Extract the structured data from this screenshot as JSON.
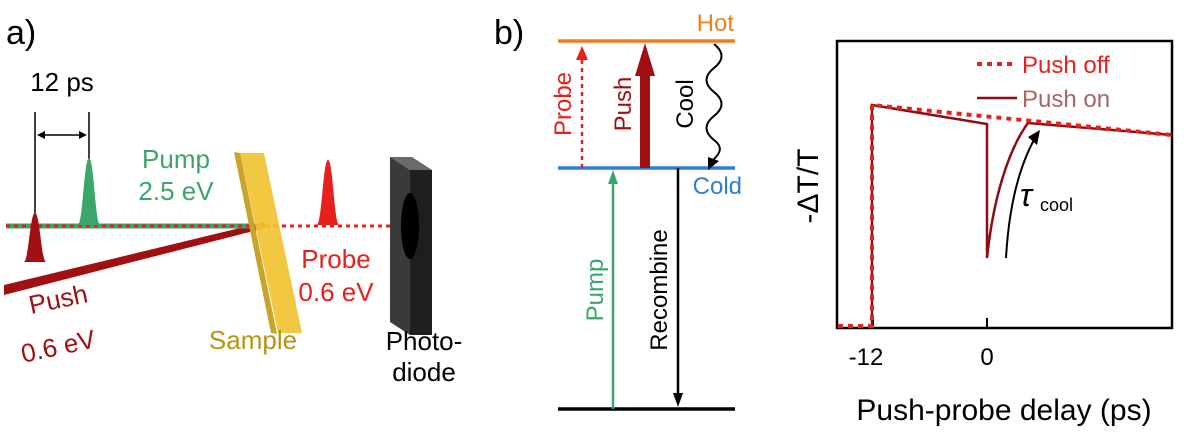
{
  "panel_a": {
    "label": "a)",
    "delay_label": "12 ps",
    "pump_label": "Pump",
    "pump_energy": "2.5 eV",
    "probe_label": "Probe",
    "probe_energy": "0.6 eV",
    "push_label": "Push",
    "push_energy": "0.6 eV",
    "sample_label": "Sample",
    "detector_line1": "Photo-",
    "detector_line2": "diode"
  },
  "panel_b": {
    "label": "b)",
    "hot_label": "Hot",
    "cold_label": "Cold",
    "probe_label": "Probe",
    "push_label": "Push",
    "cool_label": "Cool",
    "pump_label": "Pump",
    "recombine_label": "Recombine"
  },
  "panel_c": {
    "ylabel": "-ΔT/T",
    "xlabel": "Push-probe delay (ps)",
    "tick_labels": [
      "-12",
      "0"
    ],
    "legend_push_off": "Push off",
    "legend_push_on": "Push on",
    "tau_symbol": "τ",
    "tau_subscript": "cool"
  },
  "colors": {
    "pump_green": "#3aa66b",
    "probe_red": "#e8201c",
    "push_darkred": "#a10f12",
    "hot_orange": "#f07f1e",
    "cold_blue": "#2f7fd2",
    "sample_yellow": "#f1c232",
    "sample_text": "#b99412",
    "push_on_text": "#a86766"
  }
}
